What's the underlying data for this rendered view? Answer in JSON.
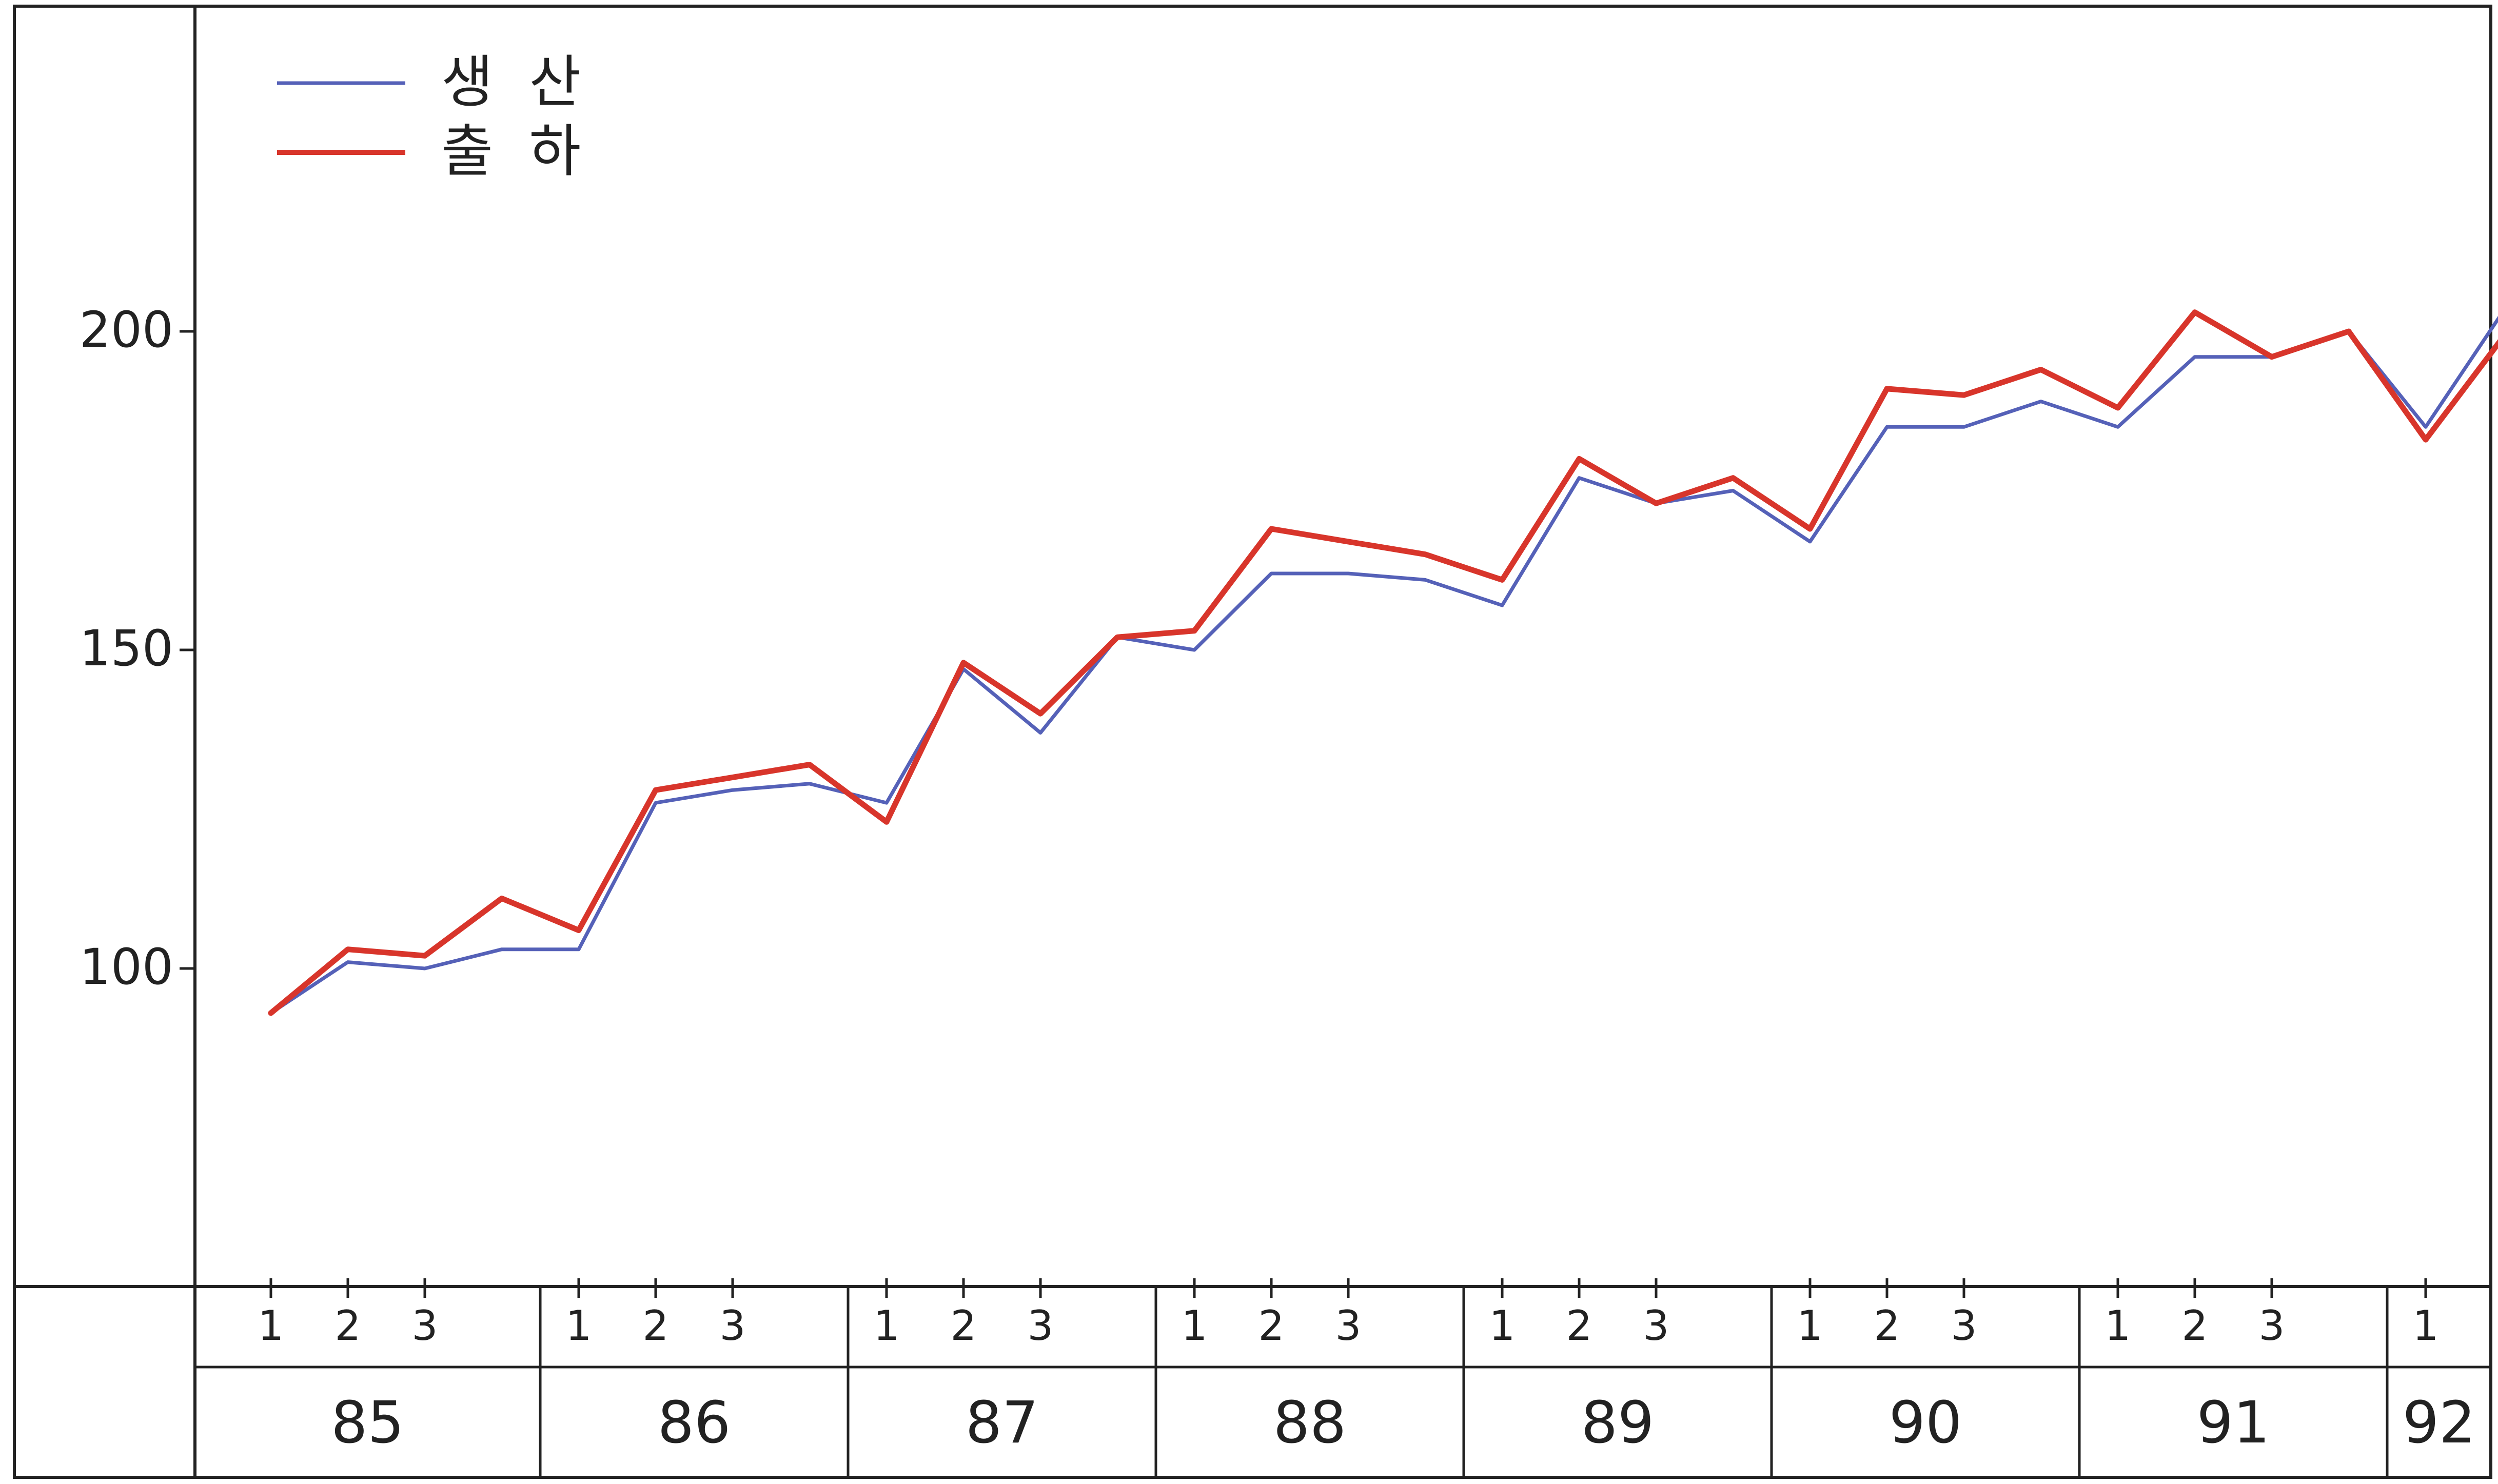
{
  "chart_data": {
    "type": "line",
    "title": "",
    "xlabel": "",
    "ylabel": "",
    "ylim": [
      50,
      250
    ],
    "y_ticks": [
      100,
      150,
      200
    ],
    "grid": false,
    "legend_position": "top-left",
    "legend": [
      {
        "label": "생  산",
        "color": "#5561b8"
      },
      {
        "label": "출  하",
        "color": "#d8352b"
      }
    ],
    "quarter_labels": [
      "1",
      "2",
      "3",
      "1",
      "2",
      "3",
      "1",
      "2",
      "3",
      "1",
      "2",
      "3",
      "1",
      "2",
      "3",
      "1",
      "2",
      "3",
      "1",
      "2",
      "3",
      "1"
    ],
    "year_groups": [
      {
        "label": "85",
        "count": 4
      },
      {
        "label": "86",
        "count": 4
      },
      {
        "label": "87",
        "count": 4
      },
      {
        "label": "88",
        "count": 4
      },
      {
        "label": "89",
        "count": 4
      },
      {
        "label": "90",
        "count": 4
      },
      {
        "label": "91",
        "count": 4
      },
      {
        "label": "92",
        "count": 1
      }
    ],
    "quarter_tick_positions": [
      0,
      1,
      2,
      4,
      5,
      6,
      8,
      9,
      10,
      12,
      13,
      14,
      16,
      17,
      18,
      20,
      21,
      22,
      24,
      25,
      26,
      28
    ],
    "series": [
      {
        "name": "생  산",
        "color": "#5561b8",
        "values": [
          93,
          101,
          100,
          103,
          103,
          126,
          128,
          129,
          126,
          147,
          137,
          152,
          150,
          162,
          162,
          161,
          157,
          177,
          173,
          175,
          167,
          185,
          185,
          189,
          185,
          196,
          196,
          200,
          185,
          203
        ]
      },
      {
        "name": "출  하",
        "color": "#d8352b",
        "values": [
          93,
          103,
          102,
          111,
          106,
          128,
          130,
          132,
          123,
          148,
          140,
          152,
          153,
          169,
          167,
          165,
          161,
          180,
          173,
          177,
          169,
          191,
          190,
          194,
          188,
          203,
          196,
          200,
          183,
          199
        ]
      }
    ]
  }
}
